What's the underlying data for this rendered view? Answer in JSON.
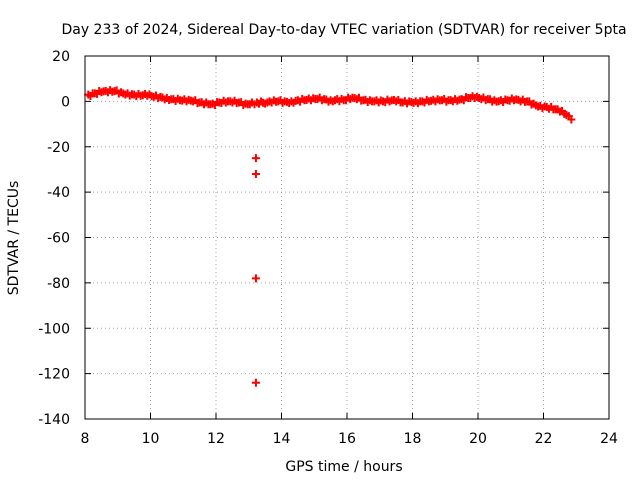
{
  "chart_data": {
    "type": "scatter",
    "title": "Day 233 of 2024, Sidereal Day-to-day VTEC variation (SDTVAR) for receiver 5pta",
    "xlabel": "GPS time / hours",
    "ylabel": "SDTVAR / TECUs",
    "xlim": [
      8,
      24
    ],
    "ylim": [
      -140,
      20
    ],
    "xticks": [
      8,
      10,
      12,
      14,
      16,
      18,
      20,
      22,
      24
    ],
    "yticks": [
      20,
      0,
      -20,
      -40,
      -60,
      -80,
      -100,
      -120,
      -140
    ],
    "grid": true,
    "series_color": "#ff0000",
    "marker": "plus",
    "series": [
      {
        "name": "SDTVAR",
        "x": [
          8.1,
          8.3,
          8.5,
          8.7,
          8.9,
          9.1,
          9.3,
          9.5,
          9.7,
          9.9,
          10.1,
          10.3,
          10.5,
          10.7,
          10.9,
          11.1,
          11.3,
          11.5,
          11.7,
          11.9,
          12.1,
          12.3,
          12.5,
          12.7,
          12.9,
          13.1,
          13.25,
          13.5,
          13.7,
          13.9,
          14.1,
          14.3,
          14.5,
          14.7,
          14.9,
          15.1,
          15.3,
          15.5,
          15.7,
          15.9,
          16.1,
          16.3,
          16.5,
          16.7,
          16.9,
          17.1,
          17.3,
          17.5,
          17.7,
          17.9,
          18.1,
          18.3,
          18.5,
          18.7,
          18.9,
          19.1,
          19.3,
          19.5,
          19.7,
          19.9,
          20.1,
          20.3,
          20.5,
          20.7,
          20.9,
          21.1,
          21.3,
          21.5,
          21.7,
          21.9,
          22.1,
          22.3,
          22.5,
          22.7,
          22.85,
          13.22,
          13.22,
          13.22,
          13.22
        ],
        "y": [
          3,
          3.5,
          4,
          4,
          4.5,
          4,
          3.5,
          3,
          2.5,
          2.5,
          2,
          2,
          1.5,
          1,
          0.5,
          0,
          0,
          -0.5,
          -0.5,
          -1,
          -0.5,
          -0.5,
          -0.5,
          -0.5,
          -1,
          -0.5,
          -0.5,
          -1,
          -0.5,
          0,
          0,
          0,
          0.5,
          0.5,
          0.5,
          1,
          1,
          0.5,
          1,
          0.5,
          1,
          1,
          0.5,
          0.5,
          0.5,
          0,
          0,
          0,
          -0.5,
          0,
          0,
          0,
          0,
          0,
          0.5,
          0.5,
          1,
          1,
          1.5,
          1.5,
          1,
          1,
          0.5,
          0.5,
          0.5,
          0.5,
          0,
          0,
          -1,
          -2,
          -2.5,
          -3.5,
          -4.5,
          -6,
          -8,
          -25,
          -32,
          -78,
          -124
        ]
      }
    ]
  }
}
